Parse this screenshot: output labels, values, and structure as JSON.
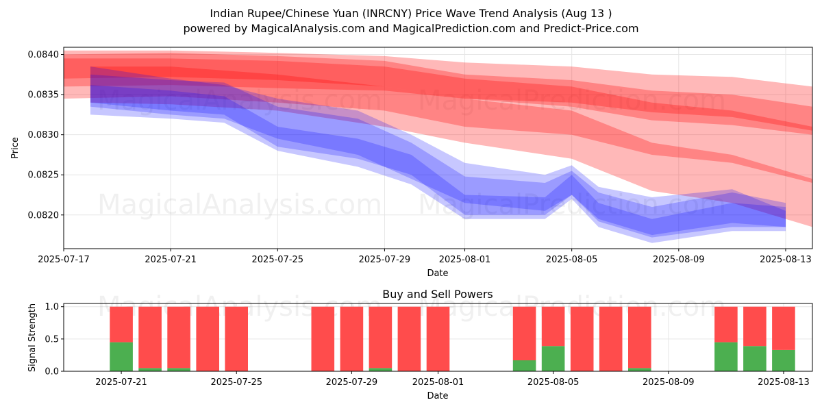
{
  "header": {
    "title": "Indian Rupee/Chinese Yuan (INRCNY) Price Wave Trend Analysis (Aug 13 )",
    "subtitle": "powered by MagicalAnalysis.com and MagicalPrediction.com and Predict-Price.com"
  },
  "watermarks": {
    "analysis": "MagicalAnalysis.com",
    "prediction": "MagicalPrediction.com"
  },
  "colors": {
    "sell_band": "#ff0000",
    "buy_band": "#0000ff",
    "buy_power": "#4caf50",
    "sell_power": "#ff4c4c",
    "grid": "#e6e6e6"
  },
  "chart_data": [
    {
      "type": "area",
      "xlabel": "Date",
      "ylabel": "Price",
      "xlim": [
        "2025-07-17",
        "2025-08-14"
      ],
      "ylim": [
        0.08158,
        0.08409
      ],
      "x_ticks": [
        "2025-07-17",
        "2025-07-21",
        "2025-07-25",
        "2025-07-29",
        "2025-08-01",
        "2025-08-05",
        "2025-08-09",
        "2025-08-13"
      ],
      "y_ticks": [
        "0.0820",
        "0.0825",
        "0.0830",
        "0.0835",
        "0.0840"
      ],
      "grid": true,
      "series": [
        {
          "band": "red",
          "x": [
            "2025-07-17",
            "2025-07-21",
            "2025-07-25",
            "2025-07-29",
            "2025-08-01",
            "2025-08-05",
            "2025-08-08",
            "2025-08-11",
            "2025-08-14"
          ],
          "upper": [
            0.08405,
            0.08405,
            0.08402,
            0.08398,
            0.0839,
            0.08385,
            0.08375,
            0.08372,
            0.0836
          ],
          "lower": [
            0.0836,
            0.08362,
            0.08358,
            0.08355,
            0.08345,
            0.0834,
            0.08328,
            0.08322,
            0.08305
          ]
        },
        {
          "band": "red",
          "x": [
            "2025-07-17",
            "2025-07-21",
            "2025-07-25",
            "2025-07-29",
            "2025-08-01",
            "2025-08-05",
            "2025-08-08",
            "2025-08-11",
            "2025-08-14"
          ],
          "upper": [
            0.084,
            0.08402,
            0.08398,
            0.08392,
            0.08375,
            0.08368,
            0.08355,
            0.0835,
            0.08335
          ],
          "lower": [
            0.0837,
            0.08372,
            0.08368,
            0.0836,
            0.08345,
            0.08335,
            0.08318,
            0.08312,
            0.083
          ]
        },
        {
          "band": "red",
          "x": [
            "2025-07-17",
            "2025-07-21",
            "2025-07-25",
            "2025-07-29",
            "2025-08-01",
            "2025-08-05",
            "2025-08-08",
            "2025-08-11",
            "2025-08-14"
          ],
          "upper": [
            0.08395,
            0.08395,
            0.08392,
            0.08385,
            0.0837,
            0.0836,
            0.0834,
            0.0833,
            0.0831
          ],
          "lower": [
            0.08345,
            0.08348,
            0.0834,
            0.0833,
            0.0831,
            0.083,
            0.08275,
            0.08265,
            0.0824
          ]
        },
        {
          "band": "red",
          "x": [
            "2025-07-18",
            "2025-07-21",
            "2025-07-25",
            "2025-07-29",
            "2025-08-01",
            "2025-08-05",
            "2025-08-08",
            "2025-08-11",
            "2025-08-14"
          ],
          "upper": [
            0.08385,
            0.08385,
            0.08375,
            0.0836,
            0.08345,
            0.0833,
            0.0829,
            0.08275,
            0.08245
          ],
          "lower": [
            0.0834,
            0.08338,
            0.0833,
            0.0831,
            0.0829,
            0.0827,
            0.0823,
            0.08215,
            0.08185
          ]
        },
        {
          "band": "blue",
          "x": [
            "2025-07-18",
            "2025-07-21",
            "2025-07-23",
            "2025-07-25",
            "2025-07-28",
            "2025-07-30",
            "2025-08-01",
            "2025-08-04",
            "2025-08-05",
            "2025-08-06",
            "2025-08-08",
            "2025-08-11",
            "2025-08-13"
          ],
          "upper": [
            0.08362,
            0.08355,
            0.08348,
            0.0831,
            0.08295,
            0.08275,
            0.08225,
            0.08222,
            0.0825,
            0.08215,
            0.08195,
            0.08215,
            0.0821
          ],
          "lower": [
            0.0834,
            0.0833,
            0.08325,
            0.08285,
            0.0827,
            0.0825,
            0.082,
            0.082,
            0.08225,
            0.08192,
            0.08172,
            0.08185,
            0.08185
          ]
        },
        {
          "band": "blue",
          "x": [
            "2025-07-18",
            "2025-07-21",
            "2025-07-23",
            "2025-07-25",
            "2025-07-28",
            "2025-07-30",
            "2025-08-01",
            "2025-08-04",
            "2025-08-05",
            "2025-08-06",
            "2025-08-08",
            "2025-08-11",
            "2025-08-13"
          ],
          "upper": [
            0.08375,
            0.08368,
            0.08365,
            0.08335,
            0.0832,
            0.0829,
            0.08248,
            0.0824,
            0.08255,
            0.08228,
            0.0821,
            0.08228,
            0.08215
          ],
          "lower": [
            0.08325,
            0.0832,
            0.08315,
            0.0828,
            0.0826,
            0.08238,
            0.08195,
            0.08195,
            0.0822,
            0.08185,
            0.08165,
            0.0818,
            0.0818
          ]
        },
        {
          "band": "blue",
          "x": [
            "2025-07-18",
            "2025-07-21",
            "2025-07-23",
            "2025-07-25",
            "2025-07-28",
            "2025-07-30",
            "2025-08-01",
            "2025-08-04",
            "2025-08-05",
            "2025-08-06",
            "2025-08-08",
            "2025-08-11",
            "2025-08-13"
          ],
          "upper": [
            0.08385,
            0.0837,
            0.08362,
            0.08345,
            0.0833,
            0.083,
            0.08265,
            0.0825,
            0.08262,
            0.08235,
            0.08222,
            0.08232,
            0.08205
          ],
          "lower": [
            0.08335,
            0.08325,
            0.0832,
            0.08295,
            0.08275,
            0.08245,
            0.08215,
            0.08205,
            0.08225,
            0.08195,
            0.08175,
            0.0819,
            0.08185
          ]
        }
      ]
    },
    {
      "type": "bar",
      "title": "Buy and Sell Powers",
      "xlabel": "Date",
      "ylabel": "Signal Strength",
      "xlim": [
        "2025-07-19",
        "2025-08-14"
      ],
      "ylim": [
        0,
        1.05
      ],
      "x_ticks": [
        "2025-07-21",
        "2025-07-25",
        "2025-07-29",
        "2025-08-01",
        "2025-08-05",
        "2025-08-09",
        "2025-08-13"
      ],
      "y_ticks": [
        "0.0",
        "0.5",
        "1.0"
      ],
      "categories": [
        "2025-07-21",
        "2025-07-22",
        "2025-07-23",
        "2025-07-24",
        "2025-07-25",
        "2025-07-28",
        "2025-07-29",
        "2025-07-30",
        "2025-07-31",
        "2025-08-01",
        "2025-08-04",
        "2025-08-05",
        "2025-08-06",
        "2025-08-07",
        "2025-08-08",
        "2025-08-11",
        "2025-08-12",
        "2025-08-13"
      ],
      "series": [
        {
          "name": "buy",
          "values": [
            0.45,
            0.05,
            0.05,
            0,
            0,
            0,
            0,
            0.05,
            0,
            0,
            0.17,
            0.39,
            0,
            0,
            0.05,
            0.45,
            0.39,
            0.33
          ]
        },
        {
          "name": "sell",
          "values": [
            0.55,
            0.95,
            0.95,
            1,
            1,
            1,
            1,
            0.95,
            1,
            1,
            0.83,
            0.61,
            1,
            1,
            0.95,
            0.55,
            0.61,
            0.67
          ]
        }
      ]
    }
  ]
}
